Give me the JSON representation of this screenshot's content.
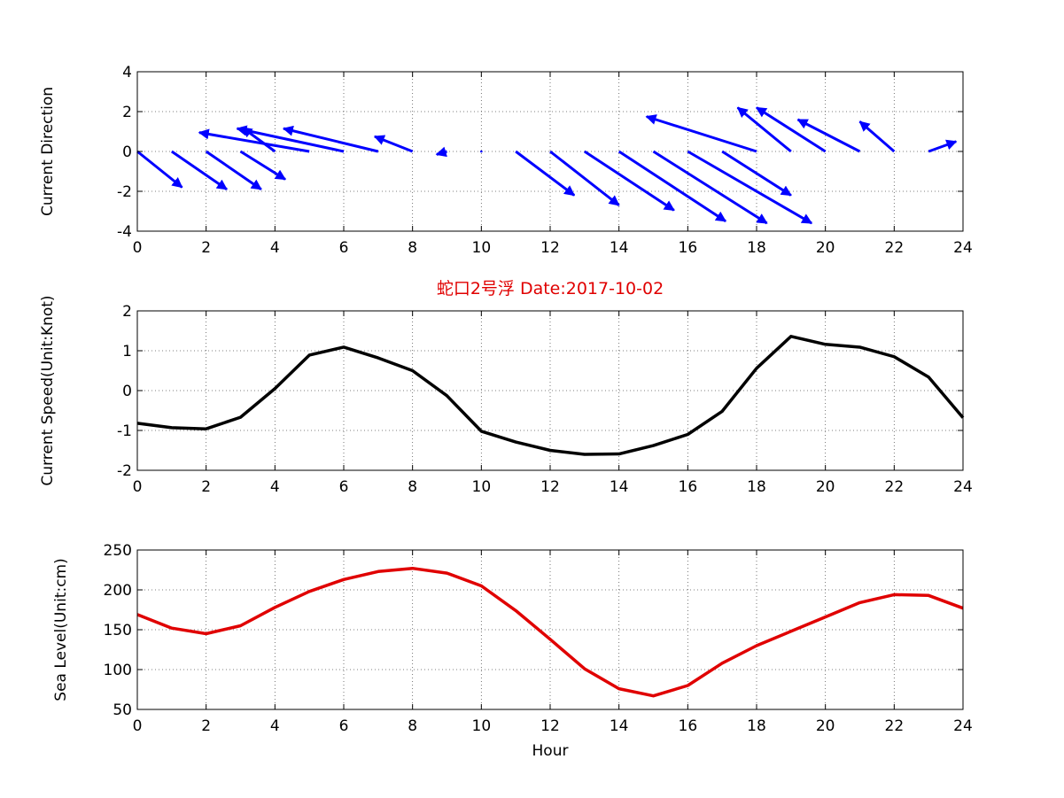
{
  "figure": {
    "title": "蛇口2号浮   Date:2017-10-02"
  },
  "chart_data": [
    {
      "type": "quiver",
      "title": "",
      "xlabel": "",
      "ylabel": "Current Direction",
      "xlim": [
        0,
        24
      ],
      "ylim": [
        -4,
        4
      ],
      "xticks": [
        "0",
        "2",
        "4",
        "6",
        "8",
        "10",
        "12",
        "14",
        "16",
        "18",
        "20",
        "22",
        "24"
      ],
      "yticks": [
        "-4",
        "-2",
        "0",
        "2",
        "4"
      ],
      "grid": true,
      "color": "#0000ff",
      "series": [
        {
          "u": [
            1.3,
            1.6,
            1.6,
            1.3,
            -0.95,
            -3.2,
            -3.1,
            -2.75,
            -1.1,
            -0.3,
            0,
            1.7,
            2.0,
            2.6,
            3.1,
            3.3,
            3.6,
            2.0,
            -3.2,
            -1.55,
            -2.0,
            -1.8,
            -1.0,
            0.8
          ],
          "v": [
            -1.8,
            -1.9,
            -1.9,
            -1.4,
            1.2,
            0.95,
            1.15,
            1.15,
            0.75,
            -0.15,
            0,
            -2.2,
            -2.7,
            -2.95,
            -3.5,
            -3.6,
            -3.6,
            -2.2,
            1.75,
            2.2,
            2.2,
            1.6,
            1.5,
            0.5
          ]
        }
      ]
    },
    {
      "type": "line",
      "title": "",
      "xlabel": "",
      "ylabel": "Current Speed(Unit:Knot)",
      "xlim": [
        0,
        24
      ],
      "ylim": [
        -2,
        2
      ],
      "xticks": [
        "0",
        "2",
        "4",
        "6",
        "8",
        "10",
        "12",
        "14",
        "16",
        "18",
        "20",
        "22",
        "24"
      ],
      "yticks": [
        "-2",
        "-1",
        "0",
        "1",
        "2"
      ],
      "grid": true,
      "color": "#000000",
      "x": [
        0,
        1,
        2,
        3,
        4,
        5,
        6,
        7,
        8,
        9,
        10,
        11,
        12,
        13,
        14,
        15,
        16,
        17,
        18,
        19,
        20,
        21,
        22,
        23,
        24
      ],
      "series": [
        {
          "values": [
            -0.82,
            -0.93,
            -0.96,
            -0.67,
            0.05,
            0.89,
            1.09,
            0.82,
            0.5,
            -0.13,
            -1.02,
            -1.29,
            -1.5,
            -1.6,
            -1.59,
            -1.38,
            -1.1,
            -0.52,
            0.56,
            1.36,
            1.16,
            1.09,
            0.85,
            0.34,
            -0.68
          ]
        }
      ]
    },
    {
      "type": "line",
      "title": "",
      "xlabel": "Hour",
      "ylabel": "Sea Level(Unit:cm)",
      "xlim": [
        0,
        24
      ],
      "ylim": [
        50,
        250
      ],
      "xticks": [
        "0",
        "2",
        "4",
        "6",
        "8",
        "10",
        "12",
        "14",
        "16",
        "18",
        "20",
        "22",
        "24"
      ],
      "yticks": [
        "50",
        "100",
        "150",
        "200",
        "250"
      ],
      "grid": true,
      "color": "#e00000",
      "x": [
        0,
        1,
        2,
        3,
        4,
        5,
        6,
        7,
        8,
        9,
        10,
        11,
        12,
        13,
        14,
        15,
        16,
        17,
        18,
        19,
        20,
        21,
        22,
        23,
        24
      ],
      "series": [
        {
          "values": [
            169,
            152,
            145,
            155,
            178,
            198,
            213,
            223,
            227,
            221,
            205,
            174,
            138,
            101,
            76,
            67,
            80,
            108,
            130,
            148,
            166,
            184,
            194,
            193,
            177
          ]
        }
      ]
    }
  ]
}
